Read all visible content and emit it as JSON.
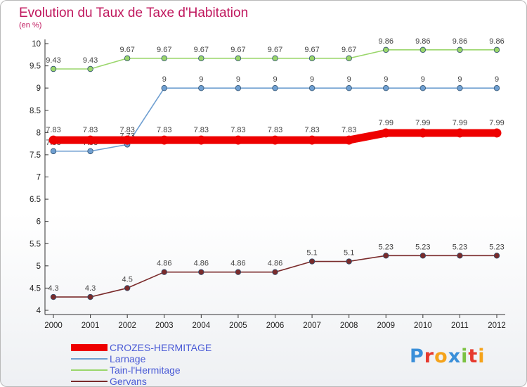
{
  "header": {
    "title": "Evolution du Taux de Taxe d'Habitation",
    "unit": "(en %)"
  },
  "chart_data": {
    "type": "line",
    "title": "Evolution du Taux de Taxe d'Habitation",
    "ylabel": "(en %)",
    "xlabel": "",
    "x": [
      "2000",
      "2001",
      "2002",
      "2003",
      "2004",
      "2005",
      "2006",
      "2007",
      "2008",
      "2009",
      "2010",
      "2011",
      "2012"
    ],
    "ylim": [
      4,
      10
    ],
    "yticks": [
      "4",
      "4.5",
      "5",
      "5.5",
      "6",
      "6.5",
      "7",
      "7.5",
      "8",
      "8.5",
      "9",
      "9.5",
      "10"
    ],
    "grid": false,
    "legend": "bottom-left",
    "series": [
      {
        "name": "CROZES-HERMITAGE",
        "color": "#ee0000",
        "values": [
          7.83,
          7.83,
          7.83,
          7.83,
          7.83,
          7.83,
          7.83,
          7.83,
          7.83,
          7.99,
          7.99,
          7.99,
          7.99
        ],
        "labels": [
          "7.83",
          "7.83",
          "7.83",
          "7.83",
          "7.83",
          "7.83",
          "7.83",
          "7.83",
          "7.83",
          "7.99",
          "7.99",
          "7.99",
          "7.99"
        ]
      },
      {
        "name": "Larnage",
        "color": "#6f9fd1",
        "values": [
          7.58,
          7.58,
          7.73,
          9,
          9,
          9,
          9,
          9,
          9,
          9,
          9,
          9,
          9
        ],
        "labels": [
          "7.58",
          "7.58",
          "7.73",
          "9",
          "9",
          "9",
          "9",
          "9",
          "9",
          "9",
          "9",
          "9",
          "9"
        ]
      },
      {
        "name": "Tain-l'Hermitage",
        "color": "#9ad66b",
        "values": [
          9.43,
          9.43,
          9.67,
          9.67,
          9.67,
          9.67,
          9.67,
          9.67,
          9.67,
          9.86,
          9.86,
          9.86,
          9.86
        ],
        "labels": [
          "9.43",
          "9.43",
          "9.67",
          "9.67",
          "9.67",
          "9.67",
          "9.67",
          "9.67",
          "9.67",
          "9.86",
          "9.86",
          "9.86",
          "9.86"
        ]
      },
      {
        "name": "Gervans",
        "color": "#7a2b2b",
        "values": [
          4.3,
          4.3,
          4.5,
          4.86,
          4.86,
          4.86,
          4.86,
          5.1,
          5.1,
          5.23,
          5.23,
          5.23,
          5.23
        ],
        "labels": [
          "4.3",
          "4.3",
          "4.5",
          "4.86",
          "4.86",
          "4.86",
          "4.86",
          "5.1",
          "5.1",
          "5.23",
          "5.23",
          "5.23",
          "5.23"
        ]
      }
    ]
  },
  "logo": {
    "letters": [
      "P",
      "r",
      "o",
      "x",
      "i",
      "t",
      "i"
    ],
    "colors": [
      "#3a8fd9",
      "#e6392e",
      "#f5a31a",
      "#3a8fd9",
      "#7cc242",
      "#e6392e",
      "#f5a31a"
    ]
  }
}
